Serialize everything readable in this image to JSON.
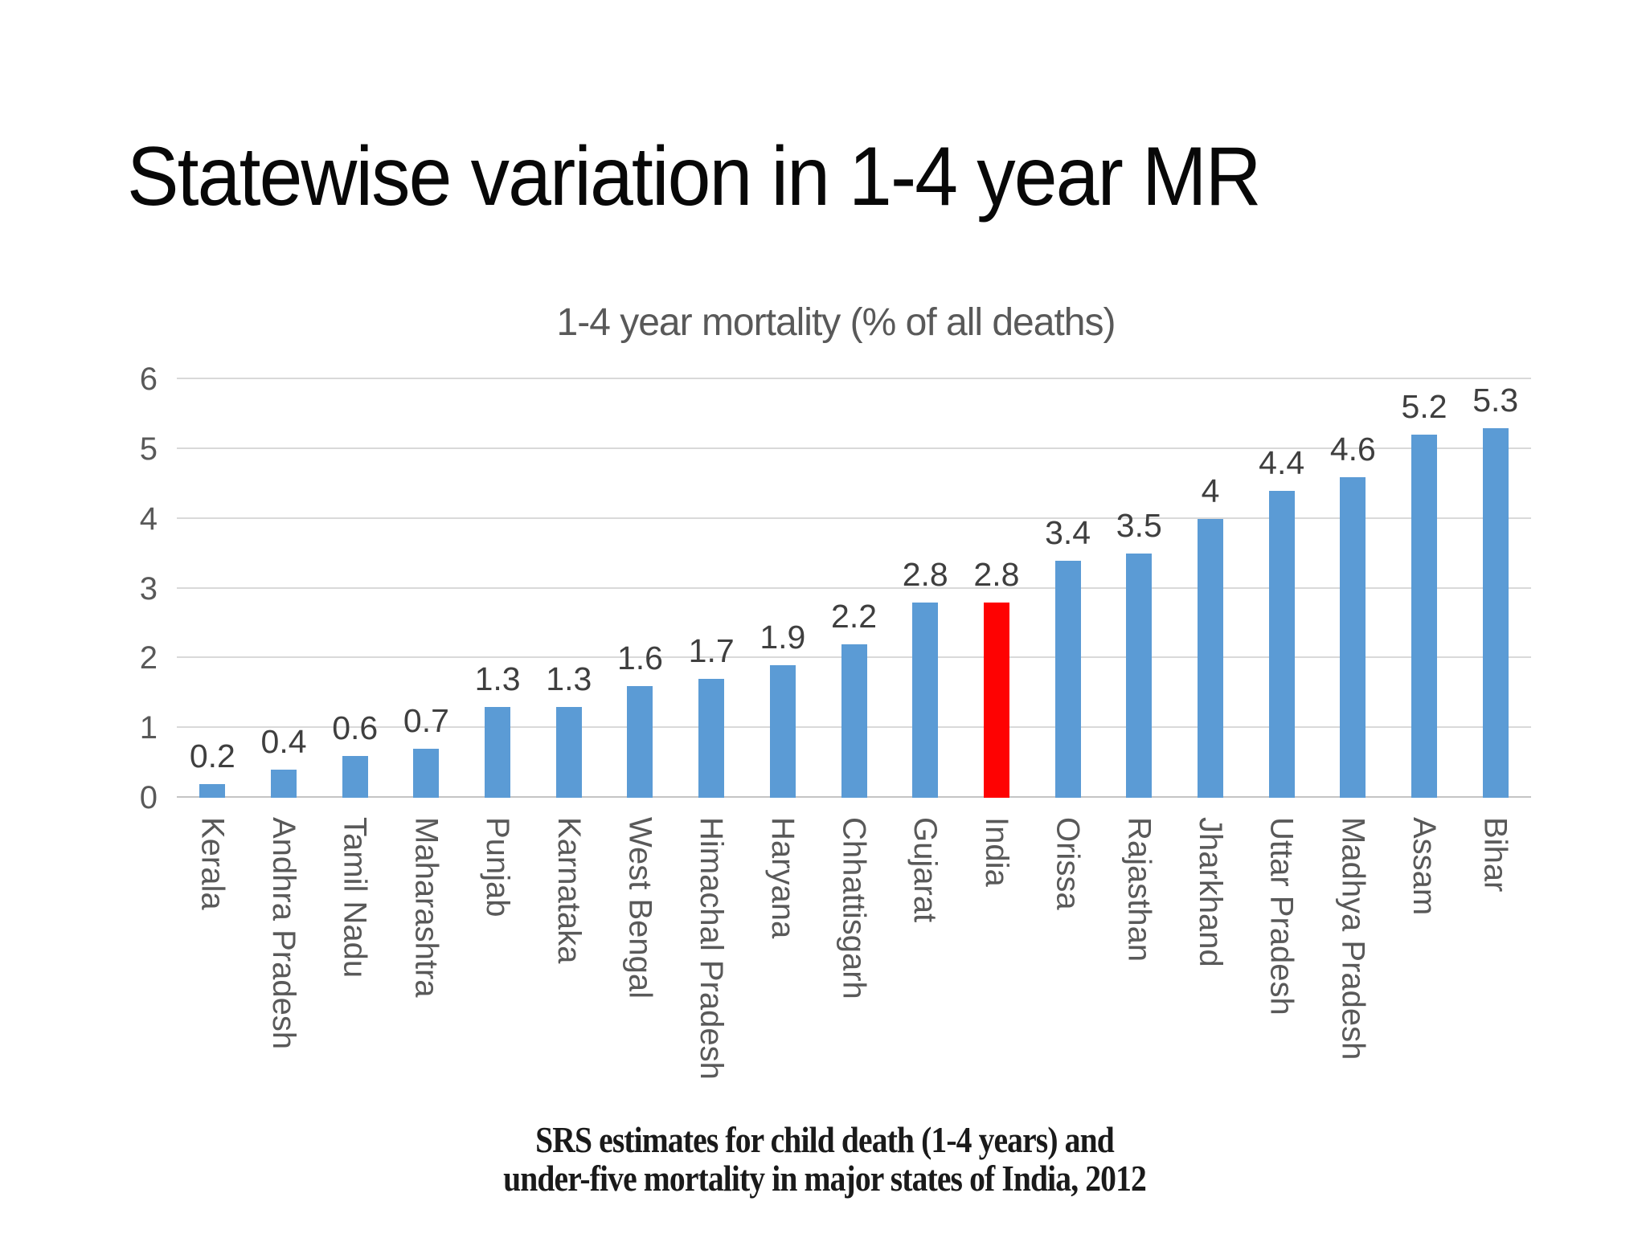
{
  "slide": {
    "title": "Statewise variation in 1-4 year MR"
  },
  "chart_data": {
    "type": "bar",
    "title": "1-4 year mortality (% of all deaths)",
    "categories": [
      "Kerala",
      "Andhra Pradesh",
      "Tamil Nadu",
      "Maharashtra",
      "Punjab",
      "Karnataka",
      "West Bengal",
      "Himachal Pradesh",
      "Haryana",
      "Chhattisgarh",
      "Gujarat",
      "India",
      "Orissa",
      "Rajasthan",
      "Jharkhand",
      "Uttar Pradesh",
      "Madhya Pradesh",
      "Assam",
      "Bihar"
    ],
    "values": [
      0.2,
      0.4,
      0.6,
      0.7,
      1.3,
      1.3,
      1.6,
      1.7,
      1.9,
      2.2,
      2.8,
      2.8,
      3.4,
      3.5,
      4,
      4.4,
      4.6,
      5.2,
      5.3
    ],
    "value_labels": [
      "0.2",
      "0.4",
      "0.6",
      "0.7",
      "1.3",
      "1.3",
      "1.6",
      "1.7",
      "1.9",
      "2.2",
      "2.8",
      "2.8",
      "3.4",
      "3.5",
      "4",
      "4.4",
      "4.6",
      "5.2",
      "5.3"
    ],
    "highlight_category": "India",
    "xlabel": "",
    "ylabel": "",
    "ylim": [
      0,
      6
    ],
    "yticks": [
      0,
      1,
      2,
      3,
      4,
      5,
      6
    ],
    "grid": "horizontal",
    "legend": "none",
    "bar_color": "#5B9BD5",
    "highlight_color": "#FE0202",
    "gridline_color": "#D9D9D9",
    "axis_text_color": "#595959",
    "value_text_color": "#3F3F3F"
  },
  "caption": {
    "line1": "SRS estimates for child death (1-4 years) and",
    "line2": "under-five mortality in major states of India, 2012"
  }
}
